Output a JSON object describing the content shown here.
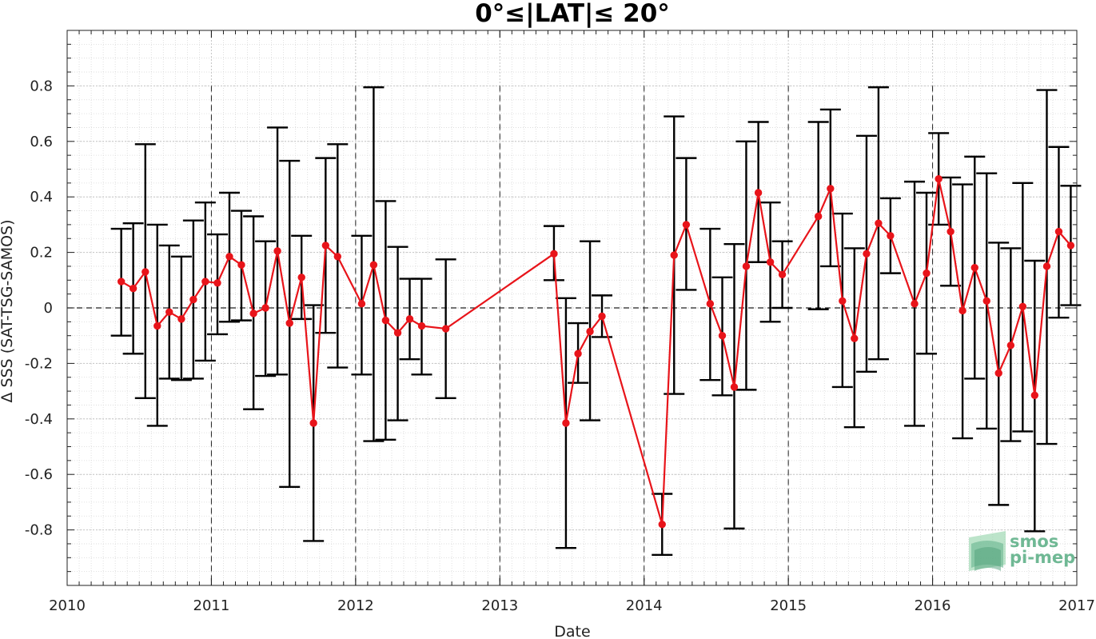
{
  "chart_data": {
    "type": "line",
    "title": "0°≤|LAT|≤ 20°",
    "xlabel": "Date",
    "ylabel": "Δ SSS (SAT-TSG-SAMOS)",
    "xlim": [
      2010,
      2017
    ],
    "ylim": [
      -1.0,
      1.0
    ],
    "xticks": [
      2010,
      2011,
      2012,
      2013,
      2014,
      2015,
      2016,
      2017
    ],
    "xtick_labels": [
      "2010",
      "2011",
      "2012",
      "2013",
      "2014",
      "2015",
      "2016",
      "2017"
    ],
    "yticks": [
      -0.8,
      -0.6,
      -0.4,
      -0.2,
      0,
      0.2,
      0.4,
      0.6,
      0.8
    ],
    "ytick_labels": [
      "-0.8",
      "-0.6",
      "-0.4",
      "-0.2",
      "0",
      "0.2",
      "0.4",
      "0.6",
      "0.8"
    ],
    "grid": true,
    "reference_line_y": 0,
    "year_separator_lines": [
      2011,
      2012,
      2013,
      2014,
      2015,
      2016
    ],
    "line_color": "#e8141a",
    "errorbar_color": "#000000",
    "series": [
      {
        "x": [
          2010.375,
          2010.458,
          2010.542,
          2010.625,
          2010.708,
          2010.792,
          2010.875,
          2010.958,
          2011.042,
          2011.125,
          2011.208,
          2011.292,
          2011.375,
          2011.458,
          2011.542,
          2011.625,
          2011.708,
          2011.792,
          2011.875,
          2012.042,
          2012.125,
          2012.208,
          2012.292,
          2012.375,
          2012.458,
          2012.625,
          2013.375,
          2013.458,
          2013.542,
          2013.625,
          2013.708,
          2014.125,
          2014.208,
          2014.292,
          2014.458,
          2014.542,
          2014.625,
          2014.708,
          2014.792,
          2014.875,
          2014.958,
          2015.208,
          2015.292,
          2015.375,
          2015.458,
          2015.542,
          2015.625,
          2015.708,
          2015.875,
          2015.958,
          2016.042,
          2016.125,
          2016.208,
          2016.292,
          2016.375,
          2016.458,
          2016.542,
          2016.625,
          2016.708,
          2016.792,
          2016.875,
          2016.958
        ],
        "y": [
          0.095,
          0.07,
          0.13,
          -0.065,
          -0.015,
          -0.04,
          0.03,
          0.095,
          0.09,
          0.185,
          0.155,
          -0.02,
          0.0,
          0.205,
          -0.055,
          0.11,
          -0.415,
          0.225,
          0.185,
          0.015,
          0.155,
          -0.045,
          -0.09,
          -0.04,
          -0.065,
          -0.075,
          0.195,
          -0.415,
          -0.165,
          -0.085,
          -0.03,
          -0.78,
          0.19,
          0.3,
          0.015,
          -0.1,
          -0.285,
          0.15,
          0.415,
          0.165,
          0.12,
          0.33,
          0.43,
          0.025,
          -0.11,
          0.195,
          0.305,
          0.26,
          0.015,
          0.125,
          0.465,
          0.275,
          -0.01,
          0.145,
          0.025,
          -0.235,
          -0.135,
          0.005,
          -0.315,
          0.15,
          0.275,
          0.225
        ],
        "y_lower": [
          -0.1,
          -0.165,
          -0.325,
          -0.425,
          -0.255,
          -0.26,
          -0.255,
          -0.19,
          -0.095,
          -0.05,
          -0.045,
          -0.365,
          -0.245,
          -0.24,
          -0.645,
          -0.04,
          -0.84,
          -0.09,
          -0.215,
          -0.24,
          -0.48,
          -0.475,
          -0.405,
          -0.185,
          -0.24,
          -0.325,
          0.1,
          -0.865,
          -0.27,
          -0.405,
          -0.105,
          -0.89,
          -0.31,
          0.065,
          -0.26,
          -0.315,
          -0.795,
          -0.295,
          0.165,
          -0.05,
          0.0,
          -0.005,
          0.15,
          -0.285,
          -0.43,
          -0.23,
          -0.185,
          0.125,
          -0.425,
          -0.165,
          0.3,
          0.08,
          -0.47,
          -0.255,
          -0.435,
          -0.71,
          -0.48,
          -0.445,
          -0.805,
          -0.49,
          -0.035,
          0.01
        ],
        "y_upper": [
          0.285,
          0.305,
          0.59,
          0.3,
          0.225,
          0.185,
          0.315,
          0.38,
          0.265,
          0.415,
          0.35,
          0.33,
          0.24,
          0.65,
          0.53,
          0.26,
          0.01,
          0.54,
          0.59,
          0.26,
          0.795,
          0.385,
          0.22,
          0.105,
          0.105,
          0.175,
          0.295,
          0.035,
          -0.055,
          0.24,
          0.045,
          -0.67,
          0.69,
          0.54,
          0.285,
          0.11,
          0.23,
          0.6,
          0.67,
          0.38,
          0.24,
          0.67,
          0.715,
          0.34,
          0.215,
          0.62,
          0.795,
          0.395,
          0.455,
          0.415,
          0.63,
          0.47,
          0.445,
          0.545,
          0.485,
          0.235,
          0.215,
          0.45,
          0.17,
          0.785,
          0.58,
          0.44
        ]
      }
    ]
  },
  "logo": {
    "line1": "smos",
    "line2": "pi-mep"
  }
}
